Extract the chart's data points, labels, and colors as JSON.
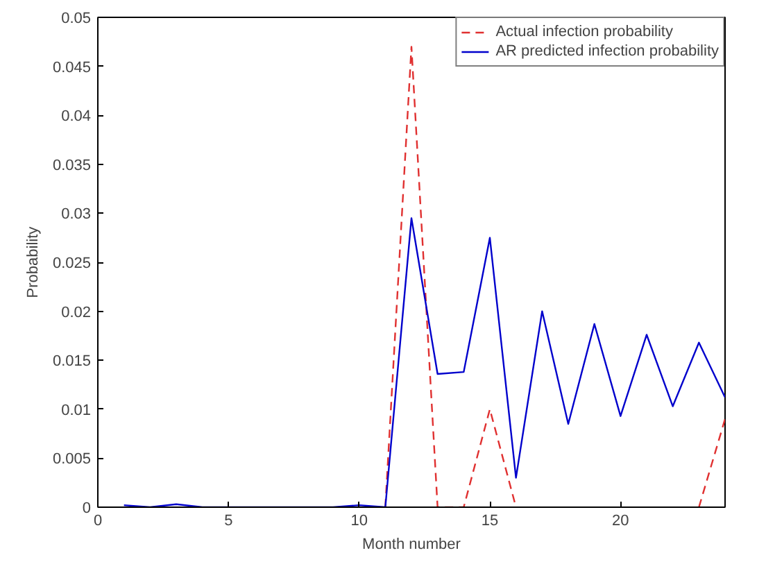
{
  "chart_data": {
    "type": "line",
    "xlabel": "Month number",
    "ylabel": "Probability",
    "x": [
      1,
      2,
      3,
      4,
      5,
      6,
      7,
      8,
      9,
      10,
      11,
      12,
      13,
      14,
      15,
      16,
      17,
      18,
      19,
      20,
      21,
      22,
      23,
      24
    ],
    "series": [
      {
        "name": "Actual infection probability",
        "color": "#e03030",
        "line_style": "dashed",
        "values": [
          null,
          null,
          null,
          null,
          null,
          null,
          null,
          null,
          null,
          null,
          0,
          0.047,
          0,
          0,
          0.01,
          0,
          null,
          null,
          null,
          null,
          null,
          null,
          0,
          0.009
        ]
      },
      {
        "name": "AR predicted infection probability",
        "color": "#0000cc",
        "line_style": "solid",
        "values": [
          0.0002,
          0,
          0.0003,
          0,
          0,
          0,
          0,
          0,
          0,
          0.0002,
          0,
          0.0295,
          0.0136,
          0.0138,
          0.0275,
          0.003,
          0.02,
          0.0085,
          0.0187,
          0.0093,
          0.0176,
          0.0103,
          0.0168,
          0.0112
        ]
      }
    ],
    "xlim": [
      0,
      24
    ],
    "xticks": [
      0,
      5,
      10,
      15,
      20
    ],
    "ylim": [
      0,
      0.05
    ],
    "yticks": [
      0,
      0.005,
      0.01,
      0.015,
      0.02,
      0.025,
      0.03,
      0.035,
      0.04,
      0.045,
      0.05
    ],
    "grid": false,
    "legend": "top right"
  }
}
